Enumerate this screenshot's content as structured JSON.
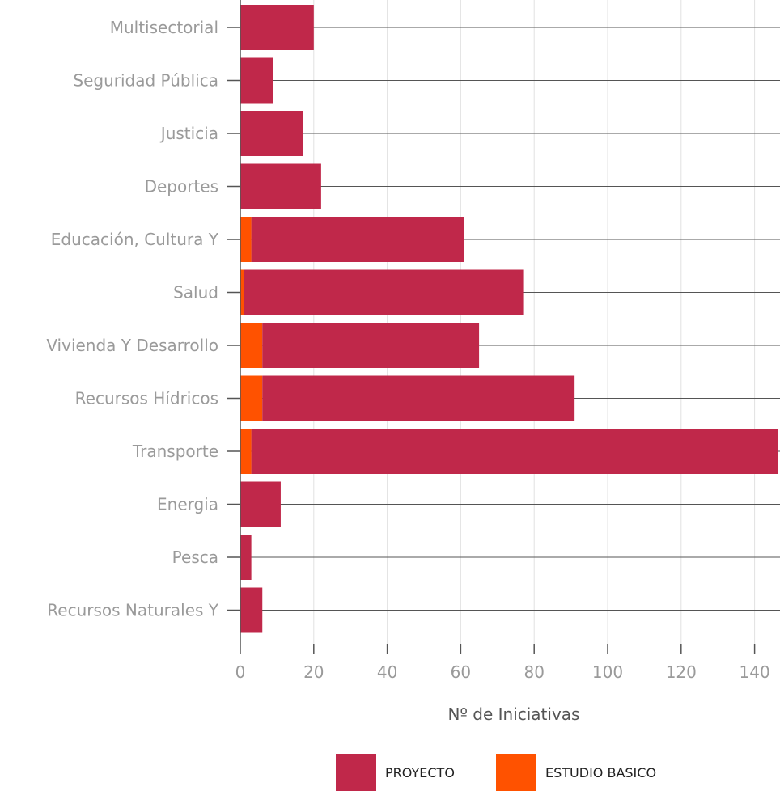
{
  "chart_data": {
    "type": "bar",
    "orientation": "horizontal",
    "stacked": true,
    "categories": [
      "Multisectorial",
      "Seguridad Pública",
      "Justicia",
      "Deportes",
      "Educación, Cultura Y",
      "Salud",
      "Vivienda Y Desarrollo",
      "Recursos Hídricos",
      "Transporte",
      "Energia",
      "Pesca",
      "Recursos Naturales Y"
    ],
    "series": [
      {
        "name": "ESTUDIO BASICO",
        "color": "#ff5200",
        "values": [
          0,
          0,
          0,
          0,
          3,
          1,
          6,
          6,
          3,
          0,
          0,
          0
        ]
      },
      {
        "name": "PROYECTO",
        "color": "#c0284a",
        "values": [
          20,
          9,
          17,
          22,
          58,
          76,
          59,
          85,
          144,
          11,
          3,
          6
        ]
      }
    ],
    "xlabel": "Nº de Iniciativas",
    "ylabel": "",
    "xlim": [
      0,
      147
    ],
    "xticks": [
      0,
      20,
      40,
      60,
      80,
      100,
      120,
      140
    ],
    "grid": true,
    "legend": {
      "position": "bottom",
      "order": [
        "PROYECTO",
        "ESTUDIO BASICO"
      ]
    }
  }
}
